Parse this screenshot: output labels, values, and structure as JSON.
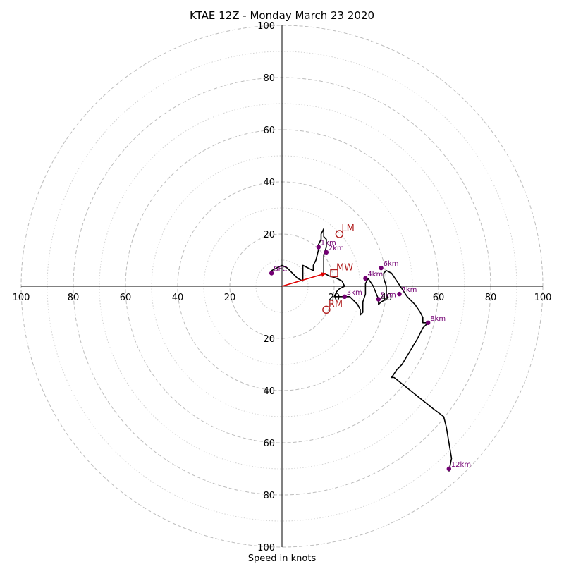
{
  "chart_data": {
    "type": "scatter",
    "title": "KTAE 12Z - Monday March 23 2020",
    "xlabel": "Speed in knots",
    "ylabel": "",
    "xlim": [
      -100,
      100
    ],
    "ylim": [
      -100,
      100
    ],
    "rings_major": [
      20,
      40,
      60,
      80,
      100
    ],
    "rings_minor": [
      10,
      30,
      50,
      70,
      90
    ],
    "tick_values": [
      100,
      80,
      60,
      40,
      20
    ],
    "hodograph_path": [
      [
        -4,
        6
      ],
      [
        -2,
        7
      ],
      [
        0,
        8
      ],
      [
        2,
        7
      ],
      [
        4,
        5
      ],
      [
        6,
        3
      ],
      [
        8,
        2
      ],
      [
        8,
        5
      ],
      [
        8,
        8
      ],
      [
        10,
        7
      ],
      [
        12,
        6
      ],
      [
        12,
        8
      ],
      [
        13,
        10
      ],
      [
        14,
        14
      ],
      [
        14,
        16
      ],
      [
        15,
        18
      ],
      [
        15,
        20
      ],
      [
        16,
        22
      ],
      [
        16,
        19
      ],
      [
        17,
        18
      ],
      [
        17,
        15
      ],
      [
        16,
        12
      ],
      [
        16,
        10
      ],
      [
        16,
        7
      ],
      [
        16,
        5
      ],
      [
        18,
        4
      ],
      [
        21,
        3
      ],
      [
        23,
        2
      ],
      [
        24,
        0
      ],
      [
        22,
        -1
      ],
      [
        21,
        -2
      ],
      [
        20,
        -4
      ],
      [
        22,
        -4
      ],
      [
        24,
        -4
      ],
      [
        26,
        -4
      ],
      [
        27,
        -5
      ],
      [
        29,
        -7
      ],
      [
        30,
        -9
      ],
      [
        30,
        -11
      ],
      [
        31,
        -10
      ],
      [
        31,
        -6
      ],
      [
        32,
        -3
      ],
      [
        32,
        1
      ],
      [
        33,
        3
      ],
      [
        35,
        0
      ],
      [
        37,
        -5
      ],
      [
        37,
        -7
      ],
      [
        38,
        -6
      ],
      [
        40,
        -5
      ],
      [
        40,
        -3
      ],
      [
        40,
        0
      ],
      [
        39,
        3
      ],
      [
        39,
        5
      ],
      [
        40,
        6
      ],
      [
        42,
        5
      ],
      [
        44,
        2
      ],
      [
        46,
        -1
      ],
      [
        48,
        -4
      ],
      [
        51,
        -7
      ],
      [
        53,
        -10
      ],
      [
        54,
        -12
      ],
      [
        54,
        -14
      ],
      [
        56,
        -14
      ],
      [
        54,
        -16
      ],
      [
        52,
        -20
      ],
      [
        49,
        -25
      ],
      [
        46,
        -30
      ],
      [
        44,
        -32
      ],
      [
        42,
        -35
      ],
      [
        43,
        -35
      ],
      [
        48,
        -39
      ],
      [
        53,
        -43
      ],
      [
        58,
        -47
      ],
      [
        62,
        -50
      ],
      [
        63,
        -54
      ],
      [
        64,
        -60
      ],
      [
        65,
        -66
      ],
      [
        64,
        -71
      ]
    ],
    "points": [
      {
        "label": "SFC",
        "x": -4,
        "y": 5
      },
      {
        "label": "1km",
        "x": 14,
        "y": 15
      },
      {
        "label": "2km",
        "x": 17,
        "y": 13
      },
      {
        "label": "3km",
        "x": 24,
        "y": -4
      },
      {
        "label": "4km",
        "x": 32,
        "y": 3
      },
      {
        "label": "5km",
        "x": 37,
        "y": -5
      },
      {
        "label": "6km",
        "x": 38,
        "y": 7
      },
      {
        "label": "7km",
        "x": 45,
        "y": -3
      },
      {
        "label": "8km",
        "x": 56,
        "y": -14
      },
      {
        "label": "12km",
        "x": 64,
        "y": -70
      }
    ],
    "markers": [
      {
        "label": "LM",
        "x": 22,
        "y": 20,
        "shape": "circle"
      },
      {
        "label": "MW",
        "x": 20,
        "y": 5,
        "shape": "square"
      },
      {
        "label": "RM",
        "x": 17,
        "y": -9,
        "shape": "circle"
      }
    ],
    "shear_vector": {
      "from": [
        0,
        0
      ],
      "to": [
        17,
        5
      ]
    },
    "colors": {
      "hodograph": "#000000",
      "height_points": "#730073",
      "motion_markers": "#b22222",
      "shear_vector": "#e00000",
      "grid": "#bdbdbd"
    }
  }
}
